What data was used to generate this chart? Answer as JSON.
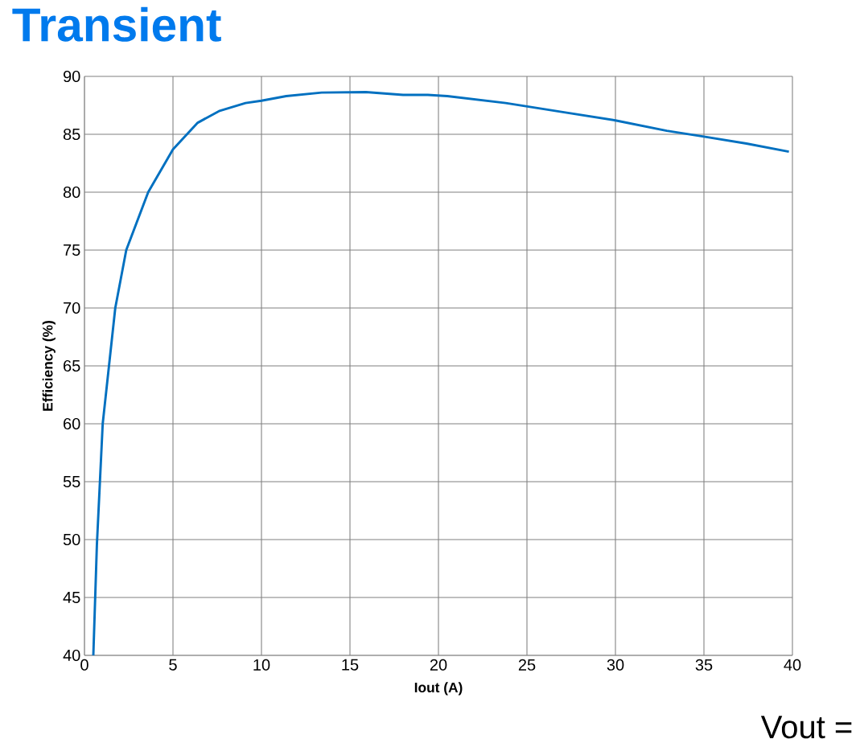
{
  "chart_data": {
    "type": "line",
    "title": "Transient",
    "xlabel": "Iout (A)",
    "ylabel": "Efficiency (%)",
    "annotations": [
      "Vout ="
    ],
    "x": [
      0.5,
      0.7,
      1.03,
      1.74,
      2.36,
      3.6,
      5,
      6.4,
      7.6,
      9.1,
      10,
      11.4,
      13.4,
      15.9,
      18,
      19.4,
      20.5,
      23.8,
      27.1,
      30,
      32.9,
      35,
      37.4,
      39.8
    ],
    "series": [
      {
        "color": "#0070c0",
        "values": [
          40,
          49.5,
          60,
          70,
          75,
          80,
          83.7,
          86,
          87,
          87.7,
          87.9,
          88.3,
          88.6,
          88.65,
          88.4,
          88.4,
          88.3,
          87.7,
          86.9,
          86.2,
          85.3,
          84.8,
          84.2,
          83.5
        ]
      }
    ],
    "xlim": [
      0,
      40
    ],
    "ylim": [
      40,
      90
    ],
    "xticks": [
      0,
      5,
      10,
      15,
      20,
      25,
      30,
      35,
      40
    ],
    "yticks": [
      40,
      45,
      50,
      55,
      60,
      65,
      70,
      75,
      80,
      85,
      90
    ],
    "grid": true,
    "marker": "none",
    "line_style": "solid"
  }
}
